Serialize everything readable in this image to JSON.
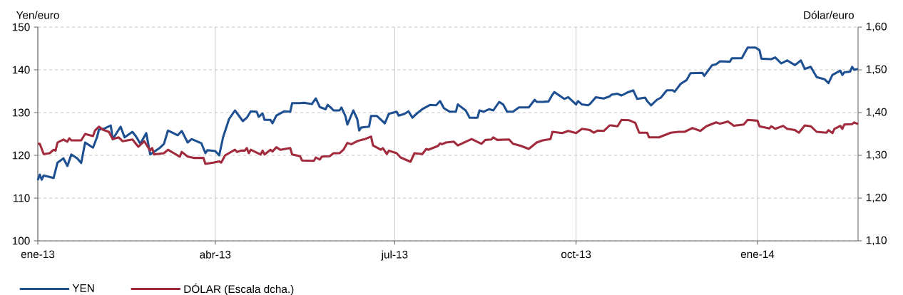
{
  "chart_data": {
    "type": "line",
    "ylabel": "Yen/euro",
    "y2label": "Dólar/euro",
    "xlim": [
      "2013-01-01",
      "2014-02-21"
    ],
    "xticks": [
      {
        "value": "2013-01-01",
        "label": "ene-13"
      },
      {
        "value": "2013-04-01",
        "label": "abr-13"
      },
      {
        "value": "2013-07-01",
        "label": "jul-13"
      },
      {
        "value": "2013-10-01",
        "label": "oct-13"
      },
      {
        "value": "2014-01-01",
        "label": "ene-14"
      }
    ],
    "ylim": [
      100,
      150
    ],
    "yticks": [
      100,
      110,
      120,
      130,
      140,
      150
    ],
    "y2lim": [
      1.1,
      1.6
    ],
    "y2ticks": [
      {
        "value": 1.1,
        "label": "1,10"
      },
      {
        "value": 1.2,
        "label": "1,20"
      },
      {
        "value": 1.3,
        "label": "1,30"
      },
      {
        "value": 1.4,
        "label": "1,40"
      },
      {
        "value": 1.5,
        "label": "1,50"
      },
      {
        "value": 1.6,
        "label": "1,60"
      }
    ],
    "grid": true,
    "legend": "bottom",
    "line_style": "solid",
    "series": [
      {
        "name": "YEN",
        "color": "#1d4f91",
        "x": [
          "2013-01-01",
          "2013-01-02",
          "2013-01-03",
          "2013-01-04",
          "2013-01-09",
          "2013-01-11",
          "2013-01-14",
          "2013-01-16",
          "2013-01-18",
          "2013-01-21",
          "2013-01-23",
          "2013-01-25",
          "2013-01-29",
          "2013-01-31",
          "2013-02-01",
          "2013-02-04",
          "2013-02-07",
          "2013-02-08",
          "2013-02-12",
          "2013-02-14",
          "2013-02-18",
          "2013-02-20",
          "2013-02-22",
          "2013-02-25",
          "2013-02-27",
          "2013-03-04",
          "2013-03-06",
          "2013-03-08",
          "2013-03-13",
          "2013-03-15",
          "2013-03-18",
          "2013-03-20",
          "2013-03-25",
          "2013-03-27",
          "2013-03-28",
          "2013-04-01",
          "2013-04-03",
          "2013-04-05",
          "2013-04-08",
          "2013-04-11",
          "2013-04-15",
          "2013-04-17",
          "2013-04-19",
          "2013-04-22",
          "2013-04-23",
          "2013-04-25",
          "2013-04-26",
          "2013-04-29",
          "2013-04-30",
          "2013-05-02",
          "2013-05-06",
          "2013-05-09",
          "2013-05-10",
          "2013-05-14",
          "2013-05-16",
          "2013-05-20",
          "2013-05-22",
          "2013-05-24",
          "2013-05-27",
          "2013-05-28",
          "2013-05-30",
          "2013-05-31",
          "2013-06-03",
          "2013-06-04",
          "2013-06-06",
          "2013-06-07",
          "2013-06-10",
          "2013-06-12",
          "2013-06-13",
          "2013-06-14",
          "2013-06-18",
          "2013-06-19",
          "2013-06-22",
          "2013-06-26",
          "2013-06-28",
          "2013-07-02",
          "2013-07-03",
          "2013-07-06",
          "2013-07-08",
          "2013-07-10",
          "2013-07-12",
          "2013-07-15",
          "2013-07-17",
          "2013-07-19",
          "2013-07-22",
          "2013-07-24",
          "2013-07-26",
          "2013-07-29",
          "2013-08-01",
          "2013-08-02",
          "2013-08-06",
          "2013-08-08",
          "2013-08-12",
          "2013-08-13",
          "2013-08-15",
          "2013-08-18",
          "2013-08-20",
          "2013-08-23",
          "2013-08-25",
          "2013-08-27",
          "2013-08-30",
          "2013-09-02",
          "2013-09-04",
          "2013-09-07",
          "2013-09-10",
          "2013-09-11",
          "2013-09-14",
          "2013-09-17",
          "2013-09-19",
          "2013-09-20",
          "2013-09-25",
          "2013-09-27",
          "2013-10-01",
          "2013-10-02",
          "2013-10-04",
          "2013-10-07",
          "2013-10-08",
          "2013-10-11",
          "2013-10-15",
          "2013-10-18",
          "2013-10-19",
          "2013-10-22",
          "2013-10-24",
          "2013-10-27",
          "2013-10-30",
          "2013-11-01",
          "2013-11-05",
          "2013-11-06",
          "2013-11-08",
          "2013-11-11",
          "2013-11-13",
          "2013-11-16",
          "2013-11-19",
          "2013-11-20",
          "2013-11-23",
          "2013-11-26",
          "2013-11-28",
          "2013-12-04",
          "2013-12-05",
          "2013-12-09",
          "2013-12-11",
          "2013-12-13",
          "2013-12-18",
          "2013-12-19",
          "2013-12-24",
          "2013-12-27",
          "2013-12-31",
          "2014-01-02",
          "2014-01-03",
          "2014-01-08",
          "2014-01-10",
          "2014-01-13",
          "2014-01-16",
          "2014-01-20",
          "2014-01-23",
          "2014-01-25",
          "2014-01-28",
          "2014-01-31",
          "2014-02-04",
          "2014-02-06",
          "2014-02-08",
          "2014-02-10",
          "2014-02-12",
          "2014-02-13",
          "2014-02-14",
          "2014-02-17",
          "2014-02-18",
          "2014-02-19",
          "2014-02-21"
        ],
        "values": [
          114.2,
          115.5,
          114.3,
          115.3,
          114.7,
          118.3,
          119.3,
          117.5,
          120.2,
          119.3,
          118.2,
          123,
          121.8,
          124.2,
          126,
          126.3,
          127,
          123.8,
          126.7,
          124.2,
          125.5,
          124.3,
          122.7,
          125.2,
          120.2,
          121.8,
          122.7,
          125.8,
          124.7,
          125.7,
          123,
          123.8,
          122.8,
          120.5,
          121.2,
          121,
          120,
          124.3,
          128.5,
          130.5,
          128,
          128.8,
          130.3,
          130.2,
          129,
          129.8,
          128.3,
          128.3,
          127.5,
          129.3,
          130.3,
          130.2,
          132.2,
          132.2,
          132.3,
          132,
          133.3,
          131.3,
          130.8,
          131.8,
          131,
          130.5,
          130.5,
          131.2,
          129.2,
          127.2,
          130.5,
          128.5,
          125.8,
          126.5,
          126.7,
          129.2,
          129.2,
          127.5,
          129.7,
          130.2,
          129.3,
          129.7,
          130.3,
          128.8,
          129.7,
          130.8,
          131.3,
          131.8,
          131.7,
          132.7,
          131,
          130.2,
          130.2,
          131.9,
          130.5,
          128.8,
          128.8,
          130.5,
          130.2,
          130.8,
          130.5,
          132.5,
          131.9,
          130.2,
          130.2,
          131.2,
          131.2,
          131.2,
          133,
          132.5,
          132.5,
          132.6,
          134.2,
          134.8,
          133.2,
          133.6,
          131.9,
          132.7,
          131.9,
          131.7,
          132,
          133.6,
          133.3,
          133.8,
          134.2,
          134.4,
          134,
          134.7,
          135.2,
          133.2,
          133.5,
          132.7,
          131.7,
          133,
          133.5,
          135.2,
          135.2,
          134.9,
          136.7,
          137.6,
          139.2,
          139.3,
          138.6,
          141.1,
          141.3,
          142,
          141.9,
          142.7,
          142.7,
          145.2,
          145.2,
          144.6,
          142.6,
          142.5,
          142.9,
          141.5,
          142.2,
          141.1,
          142.2,
          140.2,
          140.7,
          138.3,
          137.8,
          136.9,
          138.8,
          139.3,
          139.8,
          138.8,
          139.4,
          139.6,
          140.7,
          140,
          140.2
        ]
      },
      {
        "name": "DÓLAR (Escala dcha.)",
        "color": "#a12b3d",
        "axis": "y2",
        "x": [
          "2013-01-01",
          "2013-01-02",
          "2013-01-04",
          "2013-01-07",
          "2013-01-09",
          "2013-01-10",
          "2013-01-11",
          "2013-01-14",
          "2013-01-16",
          "2013-01-17",
          "2013-01-18",
          "2013-01-23",
          "2013-01-25",
          "2013-01-29",
          "2013-01-30",
          "2013-02-01",
          "2013-02-03",
          "2013-02-06",
          "2013-02-08",
          "2013-02-11",
          "2013-02-13",
          "2013-02-18",
          "2013-02-21",
          "2013-02-24",
          "2013-02-27",
          "2013-02-28",
          "2013-03-01",
          "2013-03-06",
          "2013-03-08",
          "2013-03-11",
          "2013-03-14",
          "2013-03-15",
          "2013-03-18",
          "2013-03-21",
          "2013-03-26",
          "2013-03-27",
          "2013-03-31",
          "2013-04-03",
          "2013-04-04",
          "2013-04-06",
          "2013-04-11",
          "2013-04-12",
          "2013-04-14",
          "2013-04-16",
          "2013-04-17",
          "2013-04-18",
          "2013-04-19",
          "2013-04-24",
          "2013-04-25",
          "2013-04-26",
          "2013-04-29",
          "2013-04-30",
          "2013-05-02",
          "2013-05-04",
          "2013-05-09",
          "2013-05-10",
          "2013-05-14",
          "2013-05-15",
          "2013-05-21",
          "2013-05-22",
          "2013-05-24",
          "2013-05-25",
          "2013-05-29",
          "2013-05-31",
          "2013-06-03",
          "2013-06-05",
          "2013-06-07",
          "2013-06-09",
          "2013-06-12",
          "2013-06-14",
          "2013-06-16",
          "2013-06-19",
          "2013-06-20",
          "2013-06-24",
          "2013-06-25",
          "2013-06-27",
          "2013-06-28",
          "2013-07-02",
          "2013-07-04",
          "2013-07-09",
          "2013-07-11",
          "2013-07-15",
          "2013-07-17",
          "2013-07-18",
          "2013-07-23",
          "2013-07-24",
          "2013-07-25",
          "2013-07-27",
          "2013-07-31",
          "2013-08-02",
          "2013-08-09",
          "2013-08-14",
          "2013-08-16",
          "2013-08-19",
          "2013-08-20",
          "2013-08-22",
          "2013-08-28",
          "2013-08-30",
          "2013-09-03",
          "2013-09-07",
          "2013-09-11",
          "2013-09-14",
          "2013-09-18",
          "2013-09-19",
          "2013-09-24",
          "2013-09-27",
          "2013-10-01",
          "2013-10-04",
          "2013-10-08",
          "2013-10-10",
          "2013-10-12",
          "2013-10-15",
          "2013-10-18",
          "2013-10-19",
          "2013-10-22",
          "2013-10-24",
          "2013-10-28",
          "2013-10-31",
          "2013-11-02",
          "2013-11-06",
          "2013-11-07",
          "2013-11-12",
          "2013-11-18",
          "2013-11-22",
          "2013-11-25",
          "2013-11-29",
          "2013-12-03",
          "2013-12-06",
          "2013-12-11",
          "2013-12-13",
          "2013-12-17",
          "2013-12-20",
          "2013-12-25",
          "2013-12-27",
          "2014-01-01",
          "2014-01-02",
          "2014-01-07",
          "2014-01-08",
          "2014-01-10",
          "2014-01-14",
          "2014-01-16",
          "2014-01-20",
          "2014-01-22",
          "2014-01-25",
          "2014-01-28",
          "2014-01-31",
          "2014-02-05",
          "2014-02-06",
          "2014-02-08",
          "2014-02-09",
          "2014-02-12",
          "2014-02-13",
          "2014-02-14",
          "2014-02-18",
          "2014-02-19",
          "2014-02-21"
        ],
        "values": [
          1.327,
          1.327,
          1.303,
          1.305,
          1.313,
          1.311,
          1.33,
          1.337,
          1.332,
          1.34,
          1.335,
          1.335,
          1.35,
          1.345,
          1.358,
          1.367,
          1.36,
          1.355,
          1.338,
          1.342,
          1.333,
          1.337,
          1.32,
          1.333,
          1.311,
          1.317,
          1.302,
          1.305,
          1.313,
          1.305,
          1.297,
          1.308,
          1.297,
          1.294,
          1.294,
          1.28,
          1.283,
          1.286,
          1.283,
          1.3,
          1.313,
          1.308,
          1.311,
          1.311,
          1.317,
          1.305,
          1.313,
          1.302,
          1.311,
          1.302,
          1.313,
          1.309,
          1.319,
          1.313,
          1.317,
          1.302,
          1.298,
          1.288,
          1.287,
          1.295,
          1.29,
          1.297,
          1.298,
          1.305,
          1.305,
          1.313,
          1.329,
          1.326,
          1.333,
          1.336,
          1.338,
          1.344,
          1.323,
          1.313,
          1.317,
          1.303,
          1.311,
          1.305,
          1.295,
          1.285,
          1.305,
          1.303,
          1.315,
          1.313,
          1.322,
          1.328,
          1.326,
          1.33,
          1.332,
          1.323,
          1.338,
          1.327,
          1.336,
          1.337,
          1.342,
          1.336,
          1.337,
          1.327,
          1.322,
          1.315,
          1.33,
          1.335,
          1.338,
          1.355,
          1.352,
          1.357,
          1.352,
          1.362,
          1.359,
          1.353,
          1.358,
          1.357,
          1.37,
          1.37,
          1.368,
          1.383,
          1.382,
          1.376,
          1.353,
          1.353,
          1.342,
          1.342,
          1.353,
          1.355,
          1.355,
          1.364,
          1.357,
          1.368,
          1.377,
          1.374,
          1.379,
          1.369,
          1.372,
          1.383,
          1.381,
          1.368,
          1.363,
          1.368,
          1.362,
          1.369,
          1.362,
          1.359,
          1.353,
          1.37,
          1.368,
          1.355,
          1.353,
          1.359,
          1.352,
          1.362,
          1.369,
          1.362,
          1.372,
          1.373,
          1.377,
          1.373
        ]
      }
    ]
  }
}
